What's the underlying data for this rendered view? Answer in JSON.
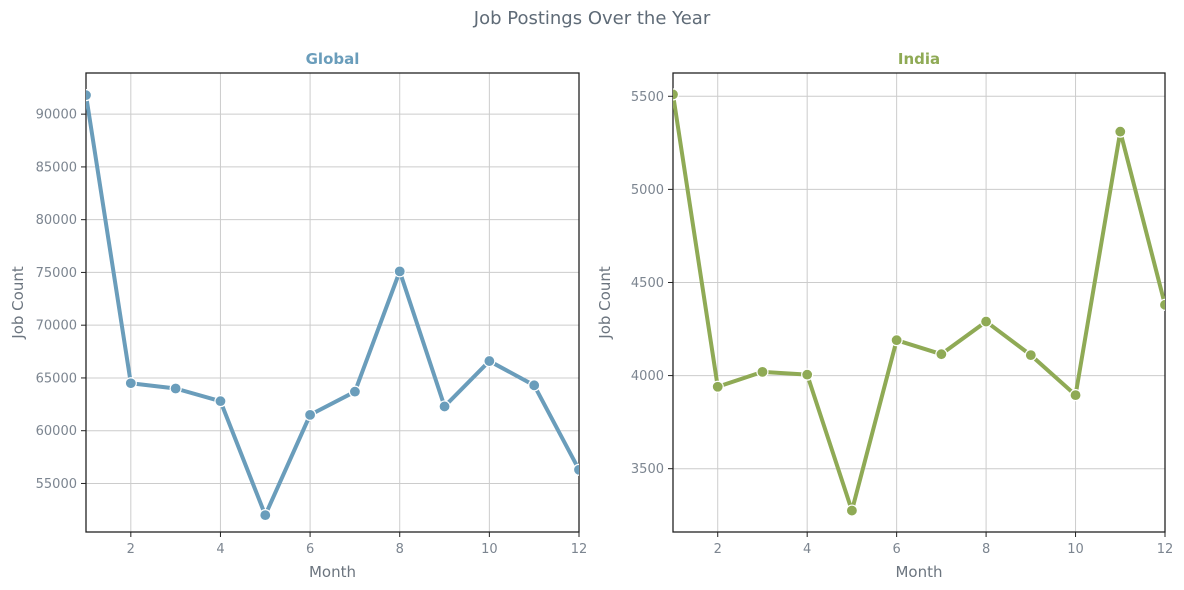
{
  "figure": {
    "suptitle": "Job Postings Over the Year"
  },
  "chart_data": [
    {
      "type": "line",
      "title": "Global",
      "title_color": "#6a9dbb",
      "line_color": "#6a9dbb",
      "xlabel": "Month",
      "ylabel": "Job Count",
      "x": [
        1,
        2,
        3,
        4,
        5,
        6,
        7,
        8,
        9,
        10,
        11,
        12
      ],
      "series": [
        {
          "values": [
            91800,
            64500,
            64000,
            62800,
            52000,
            61500,
            63700,
            75100,
            62300,
            66600,
            64300,
            56300
          ]
        }
      ],
      "xlim": [
        1,
        12
      ],
      "ylim": [
        50400,
        93900
      ],
      "xticks": [
        2,
        4,
        6,
        8,
        10,
        12
      ],
      "yticks": [
        55000,
        60000,
        65000,
        70000,
        75000,
        80000,
        85000,
        90000
      ],
      "grid": true,
      "legend": "none"
    },
    {
      "type": "line",
      "title": "India",
      "title_color": "#8faa55",
      "line_color": "#8faa55",
      "xlabel": "Month",
      "ylabel": "Job Count",
      "x": [
        1,
        2,
        3,
        4,
        5,
        6,
        7,
        8,
        9,
        10,
        11,
        12
      ],
      "series": [
        {
          "values": [
            5510,
            3940,
            4020,
            4005,
            3275,
            4190,
            4115,
            4290,
            4110,
            3895,
            5310,
            4380
          ]
        }
      ],
      "xlim": [
        1,
        12
      ],
      "ylim": [
        3160,
        5625
      ],
      "xticks": [
        2,
        4,
        6,
        8,
        10,
        12
      ],
      "yticks": [
        3500,
        4000,
        4500,
        5000,
        5500
      ],
      "grid": true,
      "legend": "none"
    }
  ]
}
